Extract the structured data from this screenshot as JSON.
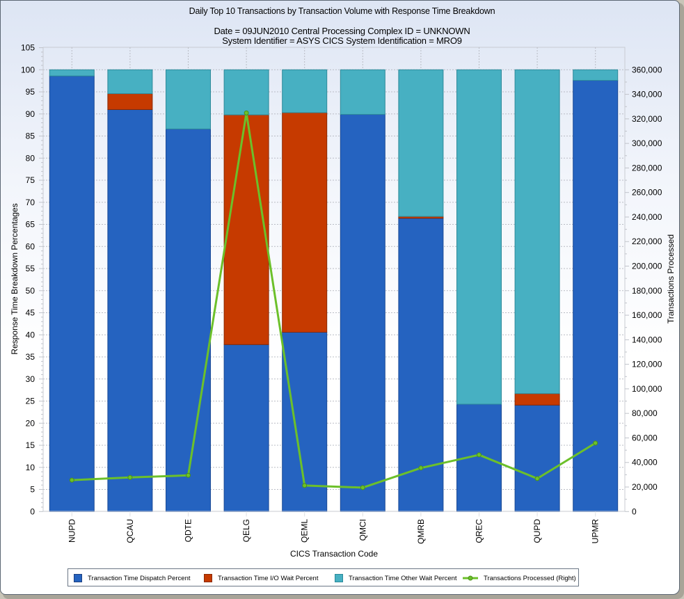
{
  "chart_data": {
    "type": "bar",
    "stacked": true,
    "title": "Daily Top 10 Transactions by Transaction Volume with Response Time Breakdown",
    "subtitle_lines": [
      "Date = 09JUN2010  Central Processing Complex ID = UNKNOWN",
      "System Identifier = ASYS  CICS System Identification = MRO9"
    ],
    "xlabel": "CICS Transaction Code",
    "ylabel": "Response Time Breakdown Percentages",
    "y2label": "Transactions Processed",
    "ylim": [
      0,
      105
    ],
    "y_ticks": [
      0,
      5,
      10,
      15,
      20,
      25,
      30,
      35,
      40,
      45,
      50,
      55,
      60,
      65,
      70,
      75,
      80,
      85,
      90,
      95,
      100,
      105
    ],
    "y2lim": [
      0,
      378000
    ],
    "y2_ticks": [
      0,
      20000,
      40000,
      60000,
      80000,
      100000,
      120000,
      140000,
      160000,
      180000,
      200000,
      220000,
      240000,
      260000,
      280000,
      300000,
      320000,
      340000,
      360000
    ],
    "y2_tick_labels": [
      "0",
      "20,000",
      "40,000",
      "60,000",
      "80,000",
      "100,000",
      "120,000",
      "140,000",
      "160,000",
      "180,000",
      "200,000",
      "220,000",
      "240,000",
      "260,000",
      "280,000",
      "300,000",
      "320,000",
      "340,000",
      "360,000"
    ],
    "grid": true,
    "legend_position": "bottom",
    "categories": [
      "NUPD",
      "QCAU",
      "QDTE",
      "QELG",
      "QEML",
      "QMCI",
      "QMRB",
      "QREC",
      "QUPD",
      "UPMR"
    ],
    "series": [
      {
        "name": "Transaction Time Dispatch Percent",
        "type": "bar",
        "axis": "left",
        "color": "#2563c0",
        "values": [
          98.6,
          91.0,
          86.6,
          37.8,
          40.6,
          89.9,
          66.4,
          24.3,
          24.1,
          97.6
        ]
      },
      {
        "name": "Transaction Time I/O Wait Percent",
        "type": "bar",
        "axis": "left",
        "color": "#c63a00",
        "values": [
          0.0,
          3.6,
          0.0,
          52.0,
          49.7,
          0.0,
          0.4,
          0.0,
          2.6,
          0.0
        ]
      },
      {
        "name": "Transaction Time Other Wait Percent",
        "type": "bar",
        "axis": "left",
        "color": "#47b0c2",
        "values": [
          1.4,
          5.4,
          13.4,
          10.2,
          9.7,
          10.1,
          33.2,
          75.7,
          73.3,
          2.4
        ]
      },
      {
        "name": "Transactions Processed (Right)",
        "type": "line",
        "axis": "right",
        "color": "#6cc02a",
        "values": [
          25600,
          27800,
          29500,
          324800,
          21200,
          19500,
          35500,
          46200,
          26900,
          55800
        ]
      }
    ]
  }
}
